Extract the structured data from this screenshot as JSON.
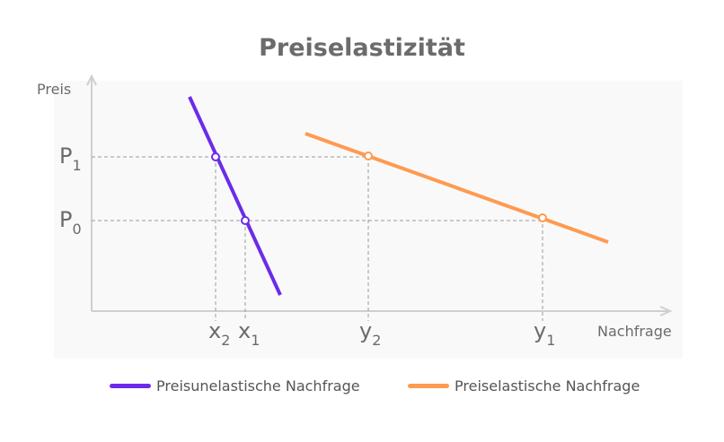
{
  "title": "Preiselastizität",
  "axes": {
    "y_label": "Preis",
    "x_label": "Nachfrage"
  },
  "price_levels": [
    {
      "main": "P",
      "sub": "1",
      "level": 1
    },
    {
      "main": "P",
      "sub": "0",
      "level": 0
    }
  ],
  "quantity_labels": [
    {
      "main": "x",
      "sub": "2"
    },
    {
      "main": "x",
      "sub": "1"
    },
    {
      "main": "y",
      "sub": "2"
    },
    {
      "main": "y",
      "sub": "1"
    }
  ],
  "series": [
    {
      "name": "Preisunelastische Nachfrage",
      "color": "#6c2bea"
    },
    {
      "name": "Preiselastische Nachfrage",
      "color": "#ff9a50"
    }
  ],
  "colors": {
    "axis": "#cfcfcf",
    "guide": "#9a9a9a",
    "text": "#6b6b6b",
    "panel": "#f7f7f7"
  }
}
